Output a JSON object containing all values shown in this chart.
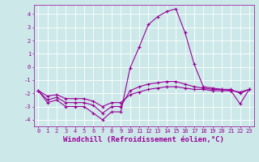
{
  "x": [
    0,
    1,
    2,
    3,
    4,
    5,
    6,
    7,
    8,
    9,
    10,
    11,
    12,
    13,
    14,
    15,
    16,
    17,
    18,
    19,
    20,
    21,
    22,
    23
  ],
  "line1": [
    -1.8,
    -2.7,
    -2.5,
    -3.0,
    -3.0,
    -3.0,
    -3.5,
    -4.0,
    -3.4,
    -3.4,
    -0.1,
    1.5,
    3.2,
    3.8,
    4.2,
    4.4,
    2.6,
    0.2,
    -1.5,
    -1.6,
    -1.7,
    -1.8,
    -2.8,
    -1.7
  ],
  "line2": [
    -1.8,
    -2.5,
    -2.3,
    -2.7,
    -2.7,
    -2.7,
    -2.9,
    -3.5,
    -3.0,
    -3.0,
    -1.8,
    -1.5,
    -1.3,
    -1.2,
    -1.1,
    -1.1,
    -1.3,
    -1.5,
    -1.6,
    -1.7,
    -1.7,
    -1.7,
    -2.0,
    -1.7
  ],
  "line3": [
    -1.8,
    -2.2,
    -2.1,
    -2.4,
    -2.4,
    -2.4,
    -2.6,
    -3.0,
    -2.7,
    -2.7,
    -2.1,
    -1.9,
    -1.7,
    -1.6,
    -1.5,
    -1.5,
    -1.6,
    -1.7,
    -1.7,
    -1.8,
    -1.8,
    -1.8,
    -1.9,
    -1.7
  ],
  "line_color": "#990099",
  "bg_color": "#cce8e8",
  "grid_color": "#aadddd",
  "xlabel": "Windchill (Refroidissement éolien,°C)",
  "ylim": [
    -4.5,
    4.7
  ],
  "xlim": [
    -0.5,
    23.5
  ],
  "yticks": [
    -4,
    -3,
    -2,
    -1,
    0,
    1,
    2,
    3,
    4
  ],
  "xticks": [
    0,
    1,
    2,
    3,
    4,
    5,
    6,
    7,
    8,
    9,
    10,
    11,
    12,
    13,
    14,
    15,
    16,
    17,
    18,
    19,
    20,
    21,
    22,
    23
  ],
  "marker": "+",
  "markersize": 3,
  "linewidth": 0.8,
  "tick_fontsize": 5,
  "xlabel_fontsize": 6.5
}
